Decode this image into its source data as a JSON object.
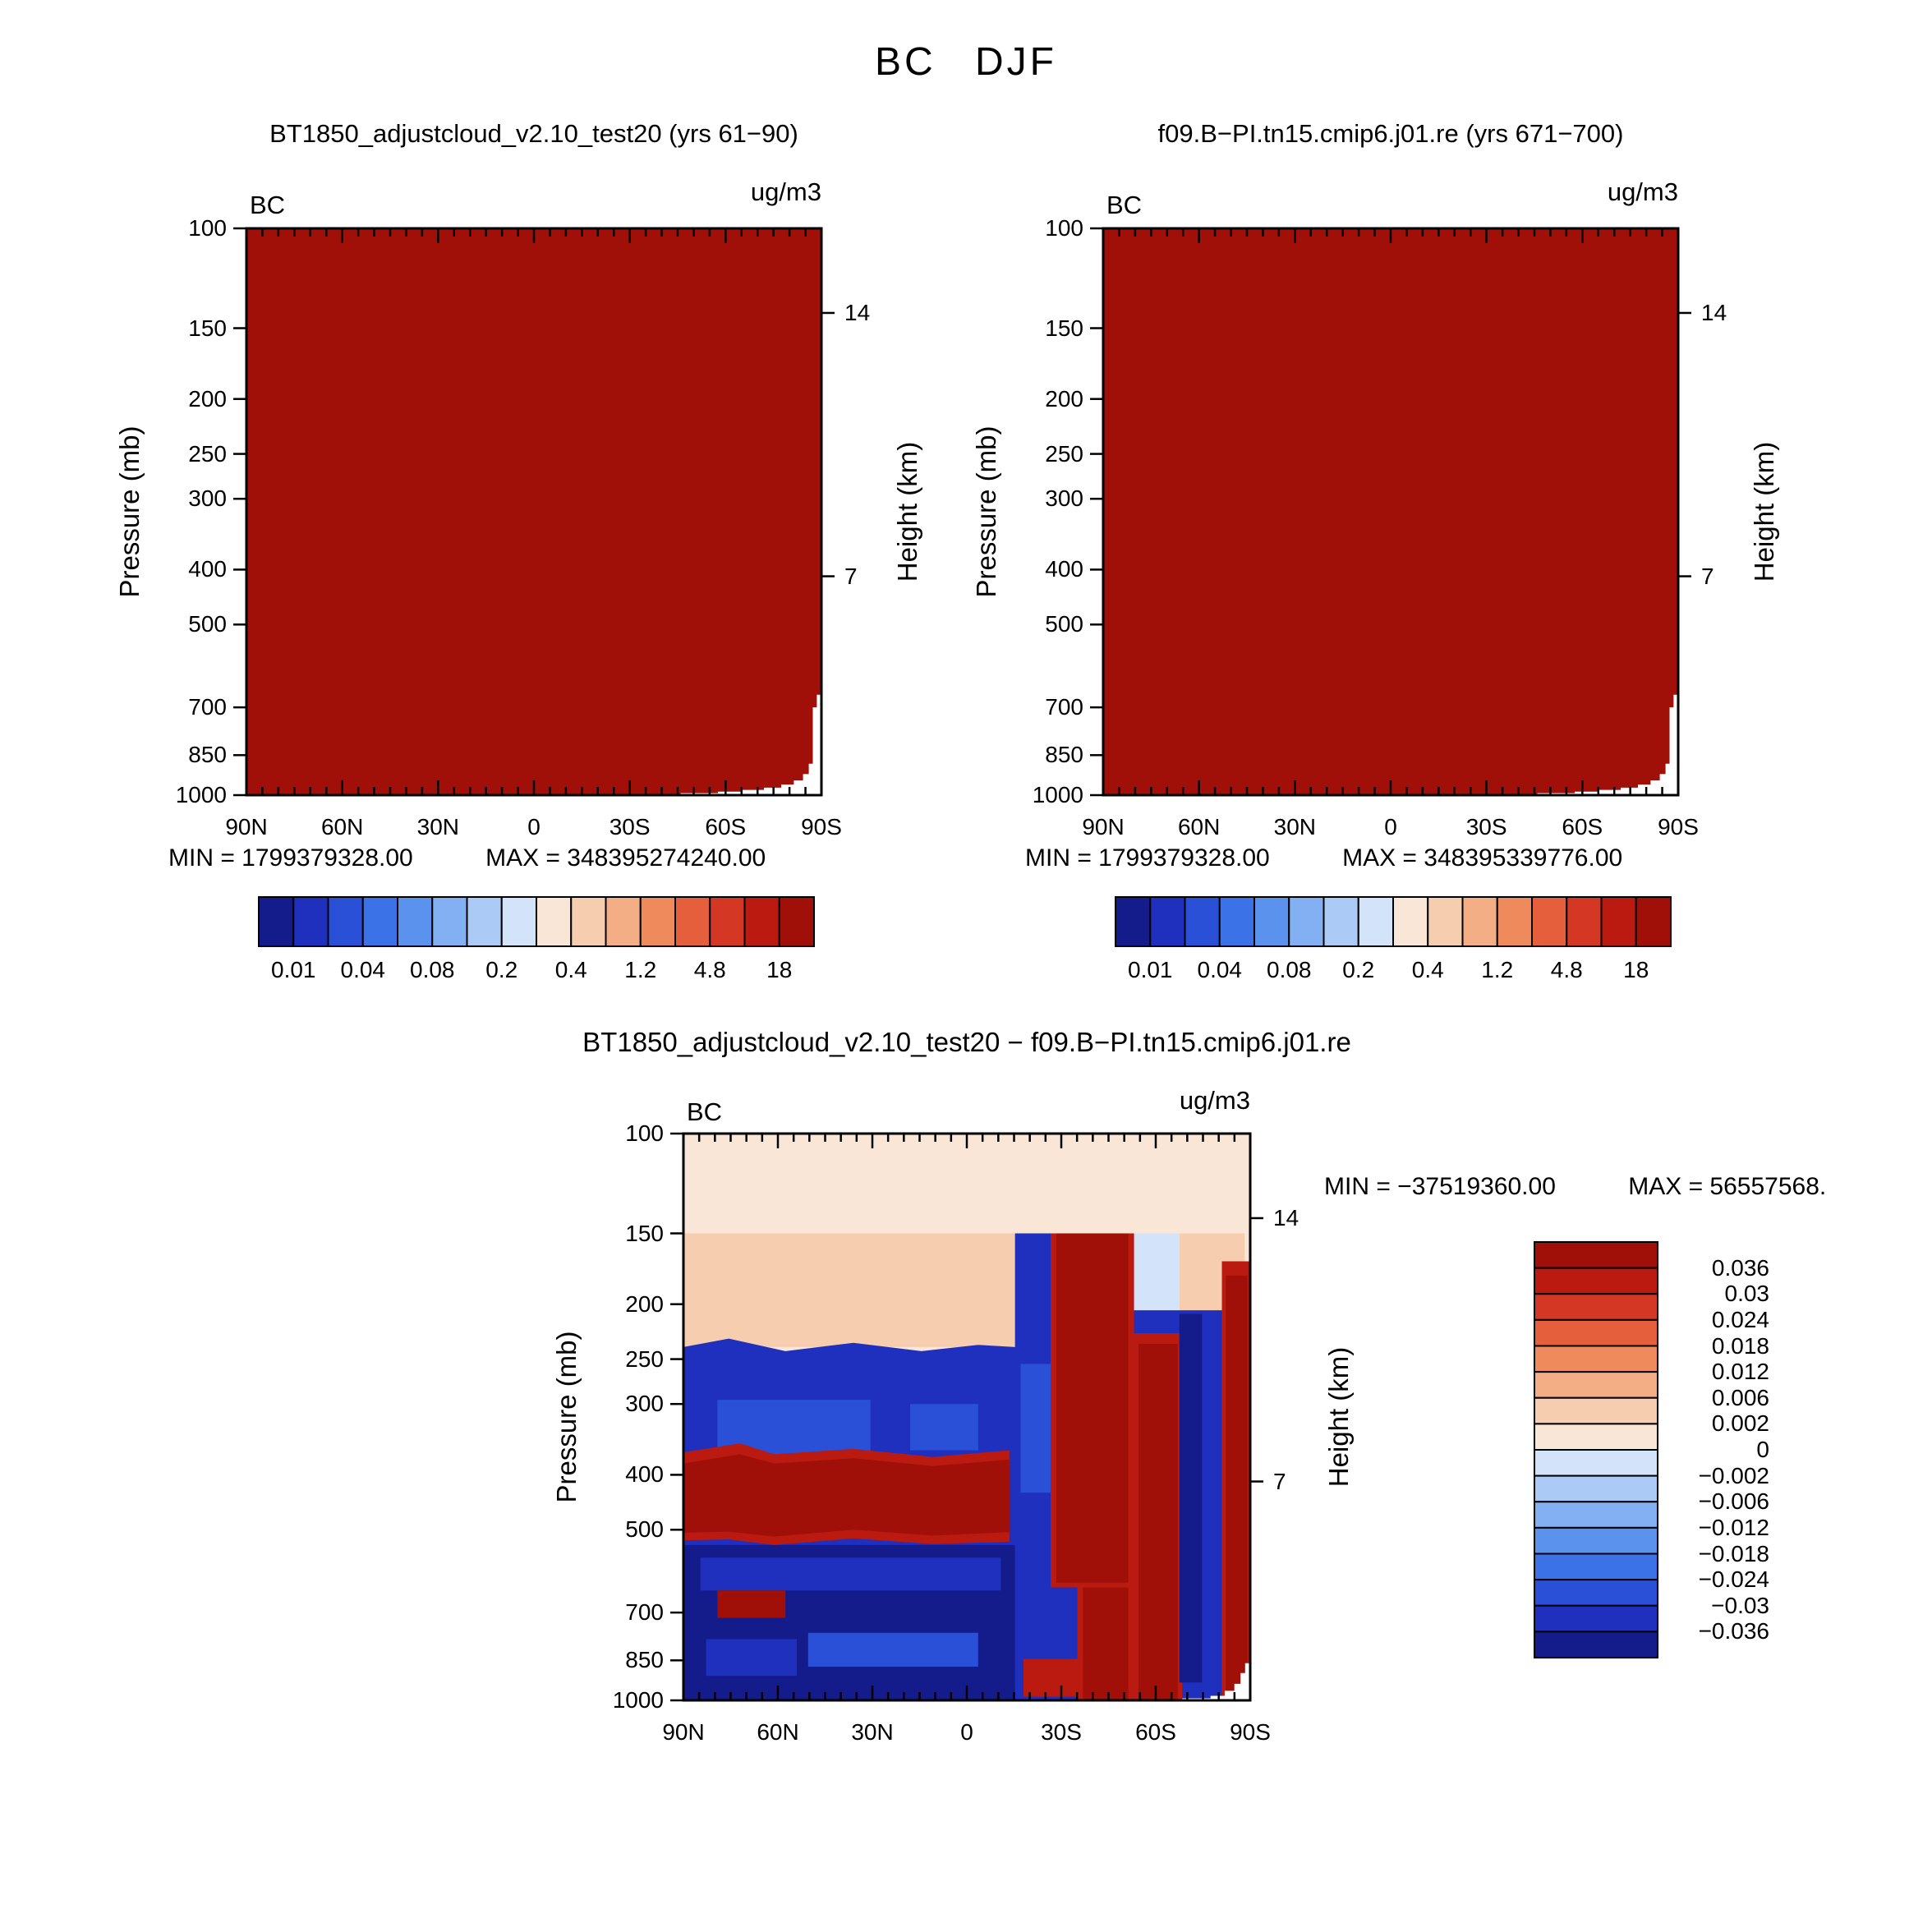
{
  "page_title": "BC DJF",
  "colors": {
    "background": "#ffffff",
    "axis": "#000000",
    "terrain_mask": "#ffffff",
    "max_fill": "#a01008",
    "scale16": [
      "#141c8c",
      "#1f2fbe",
      "#2b50d8",
      "#3c72e8",
      "#5b92ee",
      "#82b0f2",
      "#abcbf6",
      "#d3e4fa",
      "#fae6d7",
      "#f7cdb0",
      "#f4ae86",
      "#ef8a5d",
      "#e65f3c",
      "#d43723",
      "#bb1a10",
      "#a01008"
    ]
  },
  "axes": {
    "pressure_label": "Pressure (mb)",
    "height_label": "Height (km)",
    "pressure_ticks": [
      "100",
      "150",
      "200",
      "250",
      "300",
      "400",
      "500",
      "700",
      "850",
      "1000"
    ],
    "lat_ticks": [
      "90N",
      "60N",
      "30N",
      "0",
      "30S",
      "60S",
      "90S"
    ],
    "height_ticks": [
      {
        "label": "14",
        "pressure": 141
      },
      {
        "label": "7",
        "pressure": 411
      }
    ]
  },
  "panels": [
    {
      "title": "BT1850_adjustcloud_v2.10_test20 (yrs 61−90)",
      "field_label": "BC",
      "units_label": "ug/m3",
      "min_label": "MIN =  1799379328.00",
      "max_label": "MAX =  348395274240.00",
      "colorbar_labels": [
        "0.01",
        "0.04",
        "0.08",
        "0.2",
        "0.4",
        "1.2",
        "4.8",
        "18"
      ]
    },
    {
      "title": "f09.B−PI.tn15.cmip6.j01.re (yrs 671−700)",
      "field_label": "BC",
      "units_label": "ug/m3",
      "min_label": "MIN =  1799379328.00",
      "max_label": "MAX =  348395339776.00",
      "colorbar_labels": [
        "0.01",
        "0.04",
        "0.08",
        "0.2",
        "0.4",
        "1.2",
        "4.8",
        "18"
      ]
    }
  ],
  "diff_panel": {
    "title": "BT1850_adjustcloud_v2.10_test20  −  f09.B−PI.tn15.cmip6.j01.re",
    "field_label": "BC",
    "units_label": "ug/m3",
    "min_label": "MIN = −37519360.00",
    "max_label": "MAX = 56557568.",
    "colorbar_labels": [
      "0.036",
      "0.03",
      "0.024",
      "0.018",
      "0.012",
      "0.006",
      "0.002",
      "0",
      "−0.002",
      "−0.006",
      "−0.012",
      "−0.018",
      "−0.024",
      "−0.03",
      "−0.036"
    ]
  },
  "chart_data": [
    {
      "type": "heatmap",
      "panel": "top-left",
      "title": "BT1850_adjustcloud_v2.10_test20 (yrs 61−90)",
      "variable": "BC",
      "season": "DJF",
      "units": "ug/m3",
      "x": {
        "label": "Latitude",
        "ticks": [
          "90N",
          "60N",
          "30N",
          "0",
          "30S",
          "60S",
          "90S"
        ]
      },
      "y": {
        "label": "Pressure (mb)",
        "scale": "log",
        "ticks": [
          100,
          150,
          200,
          250,
          300,
          400,
          500,
          700,
          850,
          1000
        ]
      },
      "y2": {
        "label": "Height (km)",
        "ticks": [
          14,
          7
        ]
      },
      "colorbar_labels": [
        0.01,
        0.04,
        0.08,
        0.2,
        0.4,
        1.2,
        4.8,
        18
      ],
      "min": 1799379328.0,
      "max": 348395274240.0,
      "field_summary": "entire latitude-pressure section saturated above the top contour level (>18 ug/m3, darkest red); white terrain mask over Antarctica near 90S",
      "terrain_steps": [
        [
          0.755,
          992
        ],
        [
          0.82,
          986
        ],
        [
          0.86,
          979
        ],
        [
          0.9,
          970
        ],
        [
          0.93,
          958
        ],
        [
          0.952,
          942
        ],
        [
          0.968,
          918
        ],
        [
          0.978,
          880
        ],
        [
          0.985,
          700
        ],
        [
          0.992,
          665
        ]
      ]
    },
    {
      "type": "heatmap",
      "panel": "top-right",
      "title": "f09.B−PI.tn15.cmip6.j01.re (yrs 671−700)",
      "variable": "BC",
      "season": "DJF",
      "units": "ug/m3",
      "x": {
        "label": "Latitude",
        "ticks": [
          "90N",
          "60N",
          "30N",
          "0",
          "30S",
          "60S",
          "90S"
        ]
      },
      "y": {
        "label": "Pressure (mb)",
        "scale": "log",
        "ticks": [
          100,
          150,
          200,
          250,
          300,
          400,
          500,
          700,
          850,
          1000
        ]
      },
      "y2": {
        "label": "Height (km)",
        "ticks": [
          14,
          7
        ]
      },
      "colorbar_labels": [
        0.01,
        0.04,
        0.08,
        0.2,
        0.4,
        1.2,
        4.8,
        18
      ],
      "min": 1799379328.0,
      "max": 348395339776.0,
      "field_summary": "entire latitude-pressure section saturated above the top contour level (>18 ug/m3, darkest red); white terrain mask over Antarctica near 90S",
      "terrain_steps": [
        [
          0.755,
          992
        ],
        [
          0.82,
          986
        ],
        [
          0.86,
          979
        ],
        [
          0.9,
          970
        ],
        [
          0.93,
          958
        ],
        [
          0.952,
          942
        ],
        [
          0.968,
          918
        ],
        [
          0.978,
          880
        ],
        [
          0.985,
          700
        ],
        [
          0.992,
          665
        ]
      ]
    },
    {
      "type": "heatmap-diff",
      "panel": "bottom",
      "title": "BT1850_adjustcloud_v2.10_test20 − f09.B−PI.tn15.cmip6.j01.re",
      "variable": "BC",
      "season": "DJF",
      "units": "ug/m3",
      "min": -37519360.0,
      "max": 56557568,
      "levels": [
        0.036,
        0.03,
        0.024,
        0.018,
        0.012,
        0.006,
        0.002,
        0,
        -0.002,
        -0.006,
        -0.012,
        -0.018,
        -0.024,
        -0.03,
        -0.036
      ],
      "field_summary": "difference section: weak positive (light peach) above 150 mb; positive band 150-235 mb north of 10S; strong negative (dark blue) through most of the troposphere; strong positive (dark red) band near 370-510 mb from 90N to 10S; deep negative column 15S-30S; deep positive columns 30S-55S and 55S-75S; negative strip near 80S; positive column at the 90S edge; terrain mask near the South Pole",
      "regions": [
        {
          "c": 8,
          "pts": [
            [
              0,
              100
            ],
            [
              1,
              100
            ],
            [
              1,
              1000
            ],
            [
              0,
              1000
            ]
          ]
        },
        {
          "c": 9,
          "pts": [
            [
              0,
              150
            ],
            [
              0.585,
              150
            ],
            [
              0.585,
              238
            ],
            [
              0,
              238
            ]
          ]
        },
        {
          "c": 9,
          "pts": [
            [
              0.875,
              150
            ],
            [
              0.99,
              150
            ],
            [
              0.99,
              212
            ],
            [
              0.875,
              212
            ]
          ]
        },
        {
          "c": 7,
          "pts": [
            [
              0.735,
              150
            ],
            [
              0.875,
              150
            ],
            [
              0.875,
              208
            ],
            [
              0.735,
              208
            ]
          ]
        },
        {
          "c": 1,
          "pts": [
            [
              0,
              238
            ],
            [
              0.08,
              230
            ],
            [
              0.18,
              242
            ],
            [
              0.3,
              234
            ],
            [
              0.42,
              242
            ],
            [
              0.52,
              236
            ],
            [
              0.585,
              238
            ],
            [
              0.585,
              150
            ],
            [
              0.655,
              150
            ],
            [
              0.655,
              205
            ],
            [
              1,
              205
            ],
            [
              1,
              1000
            ],
            [
              0,
              1000
            ]
          ]
        },
        {
          "c": 0,
          "pts": [
            [
              0,
              532
            ],
            [
              0.585,
              532
            ],
            [
              0.585,
              1000
            ],
            [
              0,
              1000
            ]
          ]
        },
        {
          "c": 1,
          "pts": [
            [
              0.03,
              560
            ],
            [
              0.56,
              560
            ],
            [
              0.56,
              640
            ],
            [
              0.03,
              640
            ]
          ]
        },
        {
          "c": 1,
          "pts": [
            [
              0.04,
              780
            ],
            [
              0.2,
              780
            ],
            [
              0.2,
              905
            ],
            [
              0.04,
              905
            ]
          ]
        },
        {
          "c": 2,
          "pts": [
            [
              0.22,
              760
            ],
            [
              0.52,
              760
            ],
            [
              0.52,
              872
            ],
            [
              0.22,
              872
            ]
          ]
        },
        {
          "c": 2,
          "pts": [
            [
              0.06,
              295
            ],
            [
              0.33,
              295
            ],
            [
              0.33,
              378
            ],
            [
              0.06,
              378
            ]
          ]
        },
        {
          "c": 2,
          "pts": [
            [
              0.4,
              300
            ],
            [
              0.52,
              300
            ],
            [
              0.52,
              362
            ],
            [
              0.4,
              362
            ]
          ]
        },
        {
          "c": 2,
          "pts": [
            [
              0.595,
              255
            ],
            [
              0.648,
              255
            ],
            [
              0.648,
              430
            ],
            [
              0.595,
              430
            ]
          ]
        },
        {
          "c": 14,
          "pts": [
            [
              0,
              365
            ],
            [
              0.1,
              352
            ],
            [
              0.16,
              368
            ],
            [
              0.3,
              360
            ],
            [
              0.44,
              372
            ],
            [
              0.575,
              362
            ],
            [
              0.575,
              525
            ],
            [
              0.44,
              530
            ],
            [
              0.3,
              518
            ],
            [
              0.16,
              532
            ],
            [
              0.08,
              520
            ],
            [
              0,
              522
            ]
          ]
        },
        {
          "c": 15,
          "pts": [
            [
              0,
              382
            ],
            [
              0.1,
              368
            ],
            [
              0.16,
              382
            ],
            [
              0.3,
              374
            ],
            [
              0.44,
              386
            ],
            [
              0.575,
              376
            ],
            [
              0.575,
              505
            ],
            [
              0.44,
              512
            ],
            [
              0.3,
              500
            ],
            [
              0.16,
              514
            ],
            [
              0.08,
              504
            ],
            [
              0,
              506
            ]
          ]
        },
        {
          "c": 15,
          "pts": [
            [
              0.06,
              640
            ],
            [
              0.18,
              640
            ],
            [
              0.18,
              715
            ],
            [
              0.06,
              715
            ]
          ]
        },
        {
          "c": 14,
          "pts": [
            [
              0.648,
              150
            ],
            [
              0.795,
              150
            ],
            [
              0.795,
              632
            ],
            [
              0.648,
              632
            ]
          ]
        },
        {
          "c": 15,
          "pts": [
            [
              0.658,
              150
            ],
            [
              0.785,
              150
            ],
            [
              0.785,
              620
            ],
            [
              0.658,
              620
            ]
          ]
        },
        {
          "c": 14,
          "pts": [
            [
              0.695,
              620
            ],
            [
              0.795,
              620
            ],
            [
              0.795,
              1000
            ],
            [
              0.695,
              1000
            ]
          ]
        },
        {
          "c": 15,
          "pts": [
            [
              0.705,
              632
            ],
            [
              0.785,
              632
            ],
            [
              0.785,
              1000
            ],
            [
              0.705,
              1000
            ]
          ]
        },
        {
          "c": 14,
          "pts": [
            [
              0.6,
              845
            ],
            [
              0.705,
              845
            ],
            [
              0.705,
              985
            ],
            [
              0.6,
              985
            ]
          ]
        },
        {
          "c": 14,
          "pts": [
            [
              0.795,
              225
            ],
            [
              0.88,
              225
            ],
            [
              0.88,
              1000
            ],
            [
              0.795,
              1000
            ]
          ]
        },
        {
          "c": 15,
          "pts": [
            [
              0.803,
              235
            ],
            [
              0.872,
              235
            ],
            [
              0.872,
              1000
            ],
            [
              0.803,
              1000
            ]
          ]
        },
        {
          "c": 0,
          "pts": [
            [
              0.875,
              208
            ],
            [
              0.915,
              208
            ],
            [
              0.915,
              930
            ],
            [
              0.875,
              930
            ]
          ]
        },
        {
          "c": 14,
          "pts": [
            [
              0.95,
              168
            ],
            [
              1,
              168
            ],
            [
              1,
              1000
            ],
            [
              0.95,
              1000
            ]
          ]
        },
        {
          "c": 15,
          "pts": [
            [
              0.957,
              178
            ],
            [
              0.995,
              178
            ],
            [
              0.995,
              1000
            ],
            [
              0.957,
              1000
            ]
          ]
        }
      ],
      "terrain_steps": [
        [
          0.88,
          992
        ],
        [
          0.93,
          982
        ],
        [
          0.955,
          962
        ],
        [
          0.972,
          935
        ],
        [
          0.983,
          895
        ],
        [
          0.991,
          860
        ]
      ]
    }
  ]
}
